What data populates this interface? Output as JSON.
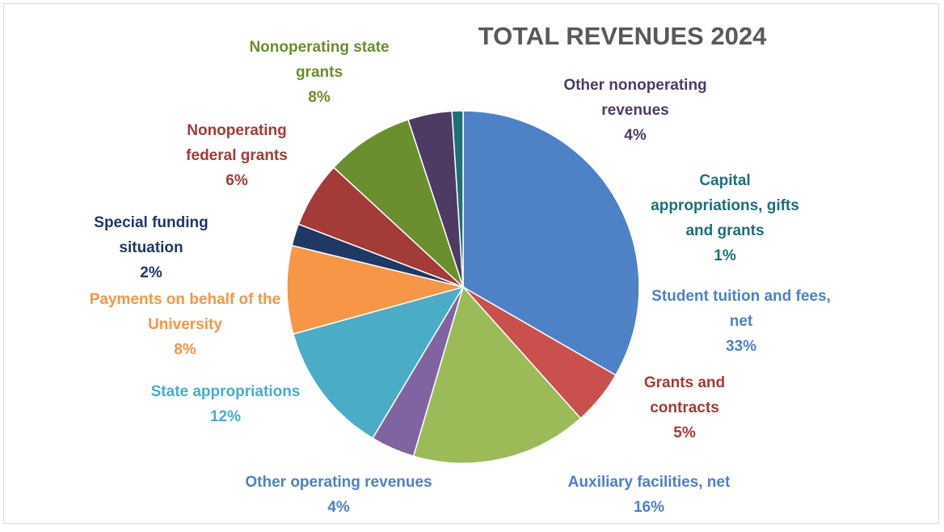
{
  "chart_data": {
    "type": "pie",
    "title": "TOTAL REVENUES 2024",
    "categories": [
      "Student tuition and fees, net",
      "Grants and contracts",
      "Auxiliary facilities, net",
      "Other operating revenues",
      "State appropriations",
      "Payments on behalf of the University",
      "Special funding situation",
      "Nonoperating federal grants",
      "Nonoperating state grants",
      "Other nonoperating revenues",
      "Capital appropriations, gifts and grants"
    ],
    "values": [
      33,
      5,
      16,
      4,
      12,
      8,
      2,
      6,
      8,
      4,
      1
    ],
    "value_labels": [
      "33%",
      "5%",
      "16%",
      "4%",
      "12%",
      "8%",
      "2%",
      "6%",
      "8%",
      "4%",
      "1%"
    ],
    "colors": [
      "#4f81c6",
      "#c9504d",
      "#9bbb59",
      "#8064a2",
      "#4bacc6",
      "#f79646",
      "#1f3864",
      "#a33b38",
      "#6b8e2e",
      "#4e3b63",
      "#1f6f78"
    ]
  }
}
